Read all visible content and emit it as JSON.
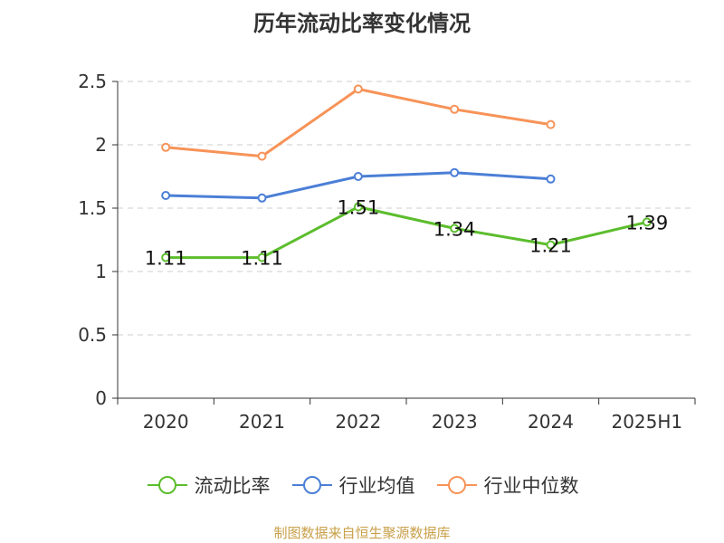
{
  "chart_data": {
    "type": "line",
    "title": "历年流动比率变化情况",
    "categories": [
      "2020",
      "2021",
      "2022",
      "2023",
      "2024",
      "2025H1"
    ],
    "ylim": [
      0,
      2.5
    ],
    "yticks": [
      "0",
      "0.5",
      "1",
      "1.5",
      "2",
      "2.5"
    ],
    "grid": true,
    "legend_position": "bottom",
    "series": [
      {
        "name": "流动比率",
        "color": "#5cbd2d",
        "values": [
          1.11,
          1.11,
          1.51,
          1.34,
          1.21,
          1.39
        ],
        "labels": [
          "1.11",
          "1.11",
          "1.51",
          "1.34",
          "1.21",
          "1.39"
        ]
      },
      {
        "name": "行业均值",
        "color": "#4b7fd6",
        "values": [
          1.6,
          1.58,
          1.75,
          1.78,
          1.73,
          null
        ]
      },
      {
        "name": "行业中位数",
        "color": "#f79358",
        "values": [
          1.98,
          1.91,
          2.44,
          2.28,
          2.16,
          null
        ]
      }
    ]
  },
  "source_note": "制图数据来自恒生聚源数据库"
}
